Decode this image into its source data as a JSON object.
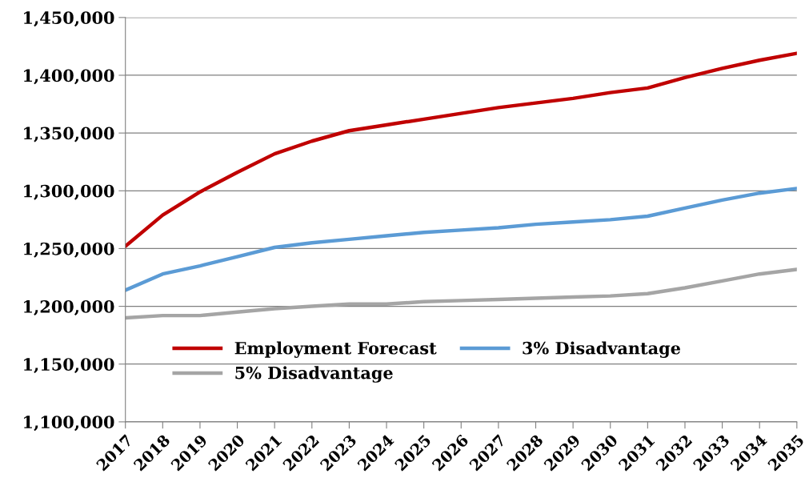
{
  "chart_data": {
    "type": "line",
    "categories": [
      "2017",
      "2018",
      "2019",
      "2020",
      "2021",
      "2022",
      "2023",
      "2024",
      "2025",
      "2026",
      "2027",
      "2028",
      "2029",
      "2030",
      "2031",
      "2032",
      "2033",
      "2034",
      "2035"
    ],
    "series": [
      {
        "name": "Employment Forecast",
        "color": "#c00000",
        "values": [
          1252000,
          1279000,
          1299000,
          1316000,
          1332000,
          1343000,
          1352000,
          1357000,
          1362000,
          1367000,
          1372000,
          1376000,
          1380000,
          1385000,
          1389000,
          1398000,
          1406000,
          1413000,
          1419000
        ]
      },
      {
        "name": "3% Disadvantage",
        "color": "#5b9bd5",
        "values": [
          1214000,
          1228000,
          1235000,
          1243000,
          1251000,
          1255000,
          1258000,
          1261000,
          1264000,
          1266000,
          1268000,
          1271000,
          1273000,
          1275000,
          1278000,
          1285000,
          1292000,
          1298000,
          1302000
        ]
      },
      {
        "name": "5% Disadvantage",
        "color": "#a5a5a5",
        "values": [
          1190000,
          1192000,
          1192000,
          1195000,
          1198000,
          1200000,
          1202000,
          1202000,
          1204000,
          1205000,
          1206000,
          1207000,
          1208000,
          1209000,
          1211000,
          1216000,
          1222000,
          1228000,
          1232000
        ]
      }
    ],
    "ylim": [
      1100000,
      1450000
    ],
    "yticks": [
      {
        "value": 1100000,
        "label": "1,100,000"
      },
      {
        "value": 1150000,
        "label": "1,150,000"
      },
      {
        "value": 1200000,
        "label": "1,200,000"
      },
      {
        "value": 1250000,
        "label": "1,250,000"
      },
      {
        "value": 1300000,
        "label": "1,300,000"
      },
      {
        "value": 1350000,
        "label": "1,350,000"
      },
      {
        "value": 1400000,
        "label": "1,400,000"
      },
      {
        "value": 1450000,
        "label": "1,450,000"
      }
    ],
    "grid": "y",
    "legend": "bottom",
    "marker": "none",
    "line_style": "solid"
  }
}
